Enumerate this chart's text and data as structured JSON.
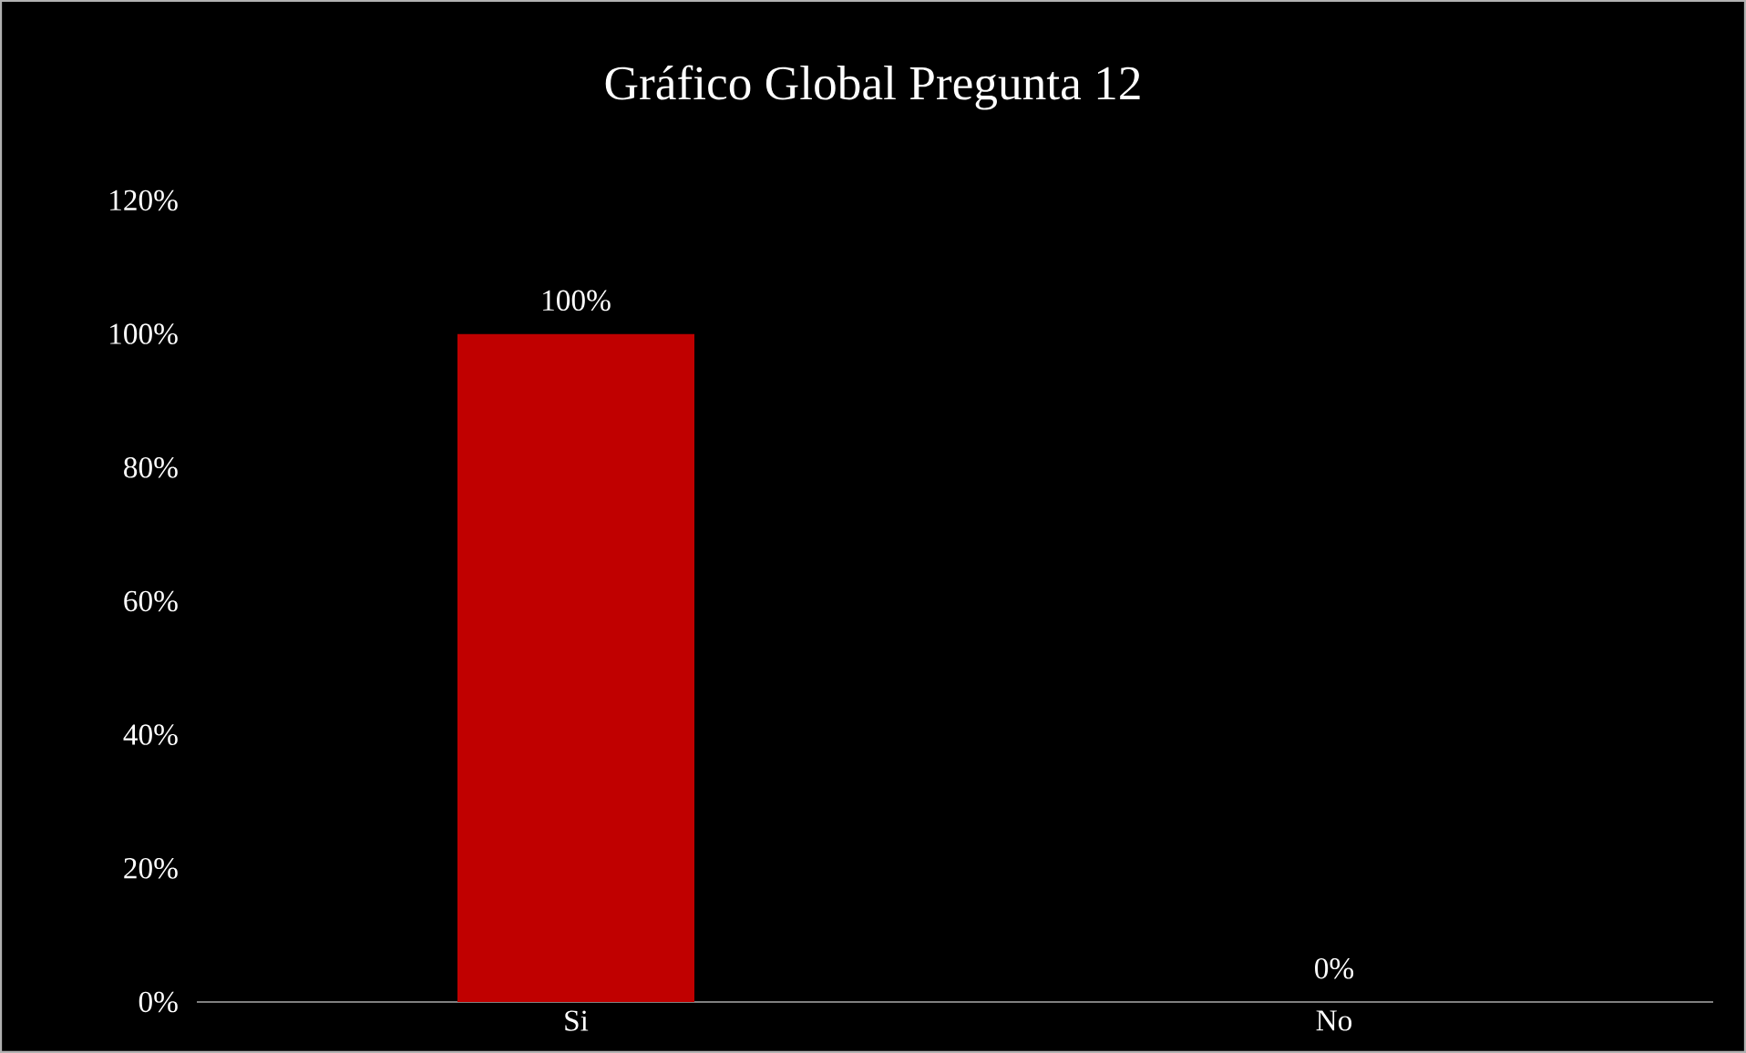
{
  "chart_data": {
    "type": "bar",
    "title": "Gráfico Global Pregunta 12",
    "categories": [
      "Si",
      "No"
    ],
    "values": [
      100,
      0
    ],
    "color": "#c00000",
    "value_labels": [
      "100%",
      "0%"
    ],
    "ylim": [
      0,
      120
    ],
    "yticks": [
      {
        "value": 0,
        "label": "0%"
      },
      {
        "value": 20,
        "label": "20%"
      },
      {
        "value": 40,
        "label": "40%"
      },
      {
        "value": 60,
        "label": "60%"
      },
      {
        "value": 80,
        "label": "80%"
      },
      {
        "value": 100,
        "label": "100%"
      },
      {
        "value": 120,
        "label": "120%"
      }
    ],
    "grid": false
  }
}
